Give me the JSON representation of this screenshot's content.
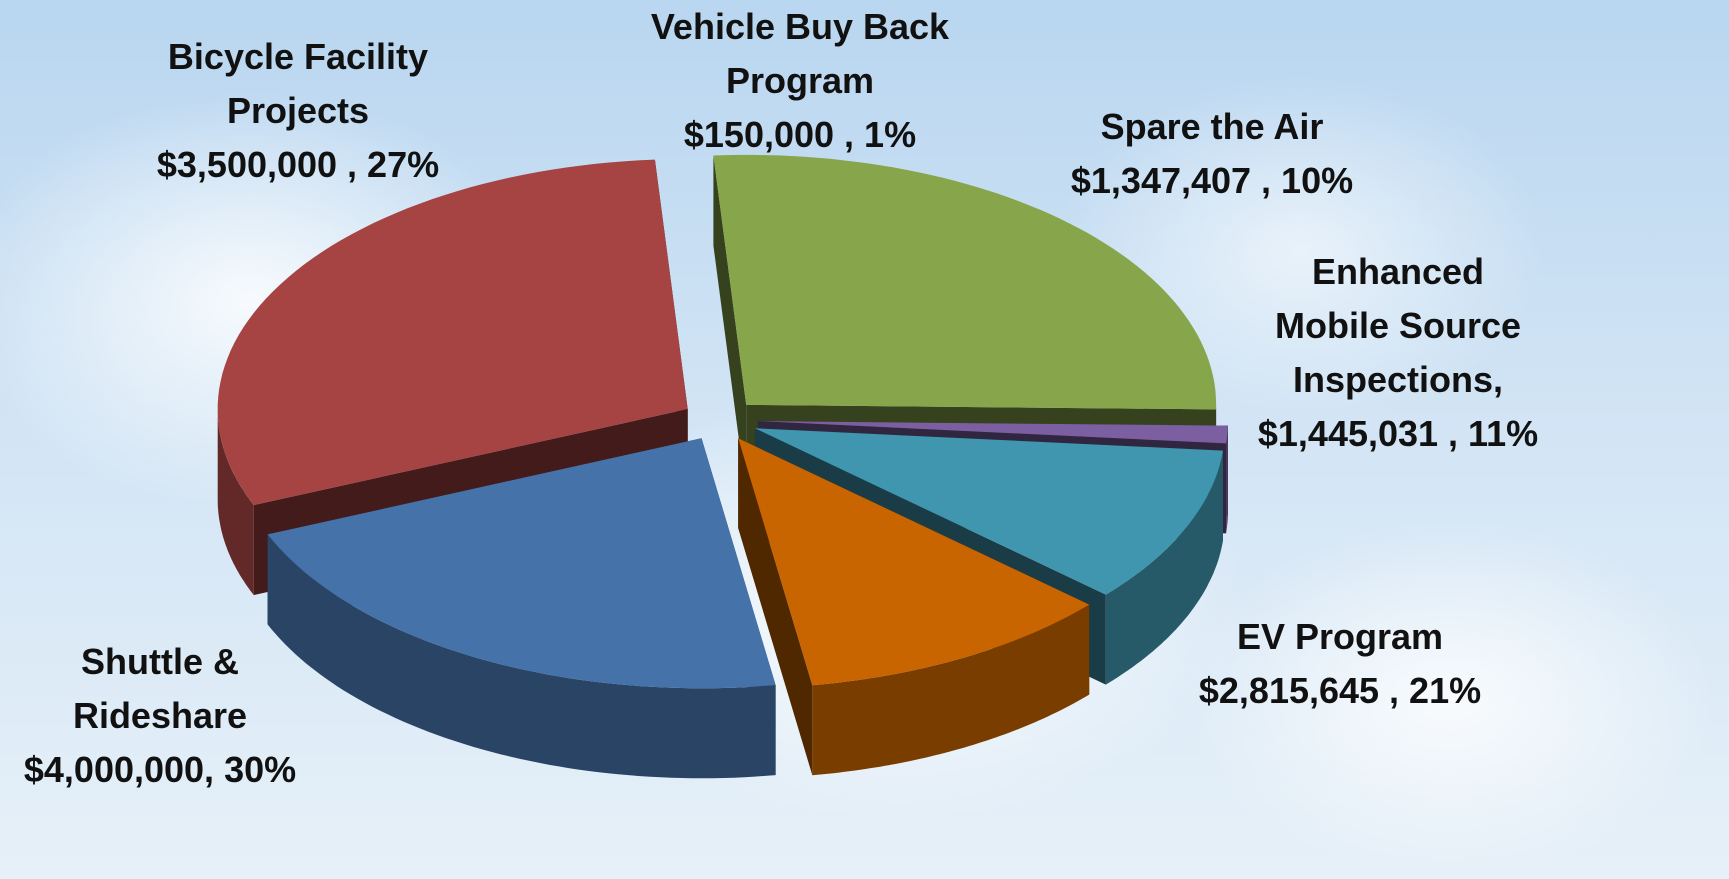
{
  "chart_data": {
    "type": "pie3d",
    "categories": [
      "Bicycle Facility Projects",
      "Vehicle Buy Back Program",
      "Spare the Air",
      "Enhanced Mobile Source Inspections,",
      "EV Program",
      "Shuttle & Rideshare"
    ],
    "values": [
      3500000,
      150000,
      1347407,
      1445031,
      2815645,
      4000000
    ],
    "value_labels": [
      "$3,500,000 , 27%",
      "$150,000 , 1%",
      "$1,347,407 , 10%",
      "$1,445,031 , 11%",
      "$2,815,645 , 21%",
      "$4,000,000, 30%"
    ],
    "colors": [
      "#87a54b",
      "#7b5fa1",
      "#3f96ae",
      "#c96500",
      "#4572a8",
      "#a54442"
    ]
  }
}
